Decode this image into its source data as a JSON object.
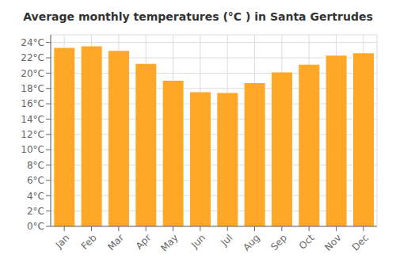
{
  "chart_data": {
    "type": "bar",
    "title": "Average monthly temperatures (°C ) in Santa Gertrudes",
    "categories": [
      "Jan",
      "Feb",
      "Mar",
      "Apr",
      "May",
      "Jun",
      "Jul",
      "Aug",
      "Sep",
      "Oct",
      "Nov",
      "Dec"
    ],
    "values": [
      23.3,
      23.5,
      22.9,
      21.2,
      19.0,
      17.5,
      17.4,
      18.7,
      20.1,
      21.1,
      22.3,
      22.6
    ],
    "color": "#FFA726",
    "ylim": [
      0,
      25
    ],
    "yticks": [
      {
        "value": 0,
        "label": "0°C"
      },
      {
        "value": 2,
        "label": "2°C"
      },
      {
        "value": 4,
        "label": "4°C"
      },
      {
        "value": 6,
        "label": "6°C"
      },
      {
        "value": 8,
        "label": "8°C"
      },
      {
        "value": 10,
        "label": "10°C"
      },
      {
        "value": 12,
        "label": "12°C"
      },
      {
        "value": 14,
        "label": "14°C"
      },
      {
        "value": 16,
        "label": "16°C"
      },
      {
        "value": 18,
        "label": "18°C"
      },
      {
        "value": 20,
        "label": "20°C"
      },
      {
        "value": 22,
        "label": "22°C"
      },
      {
        "value": 24,
        "label": "24°C"
      }
    ],
    "grid": true
  }
}
